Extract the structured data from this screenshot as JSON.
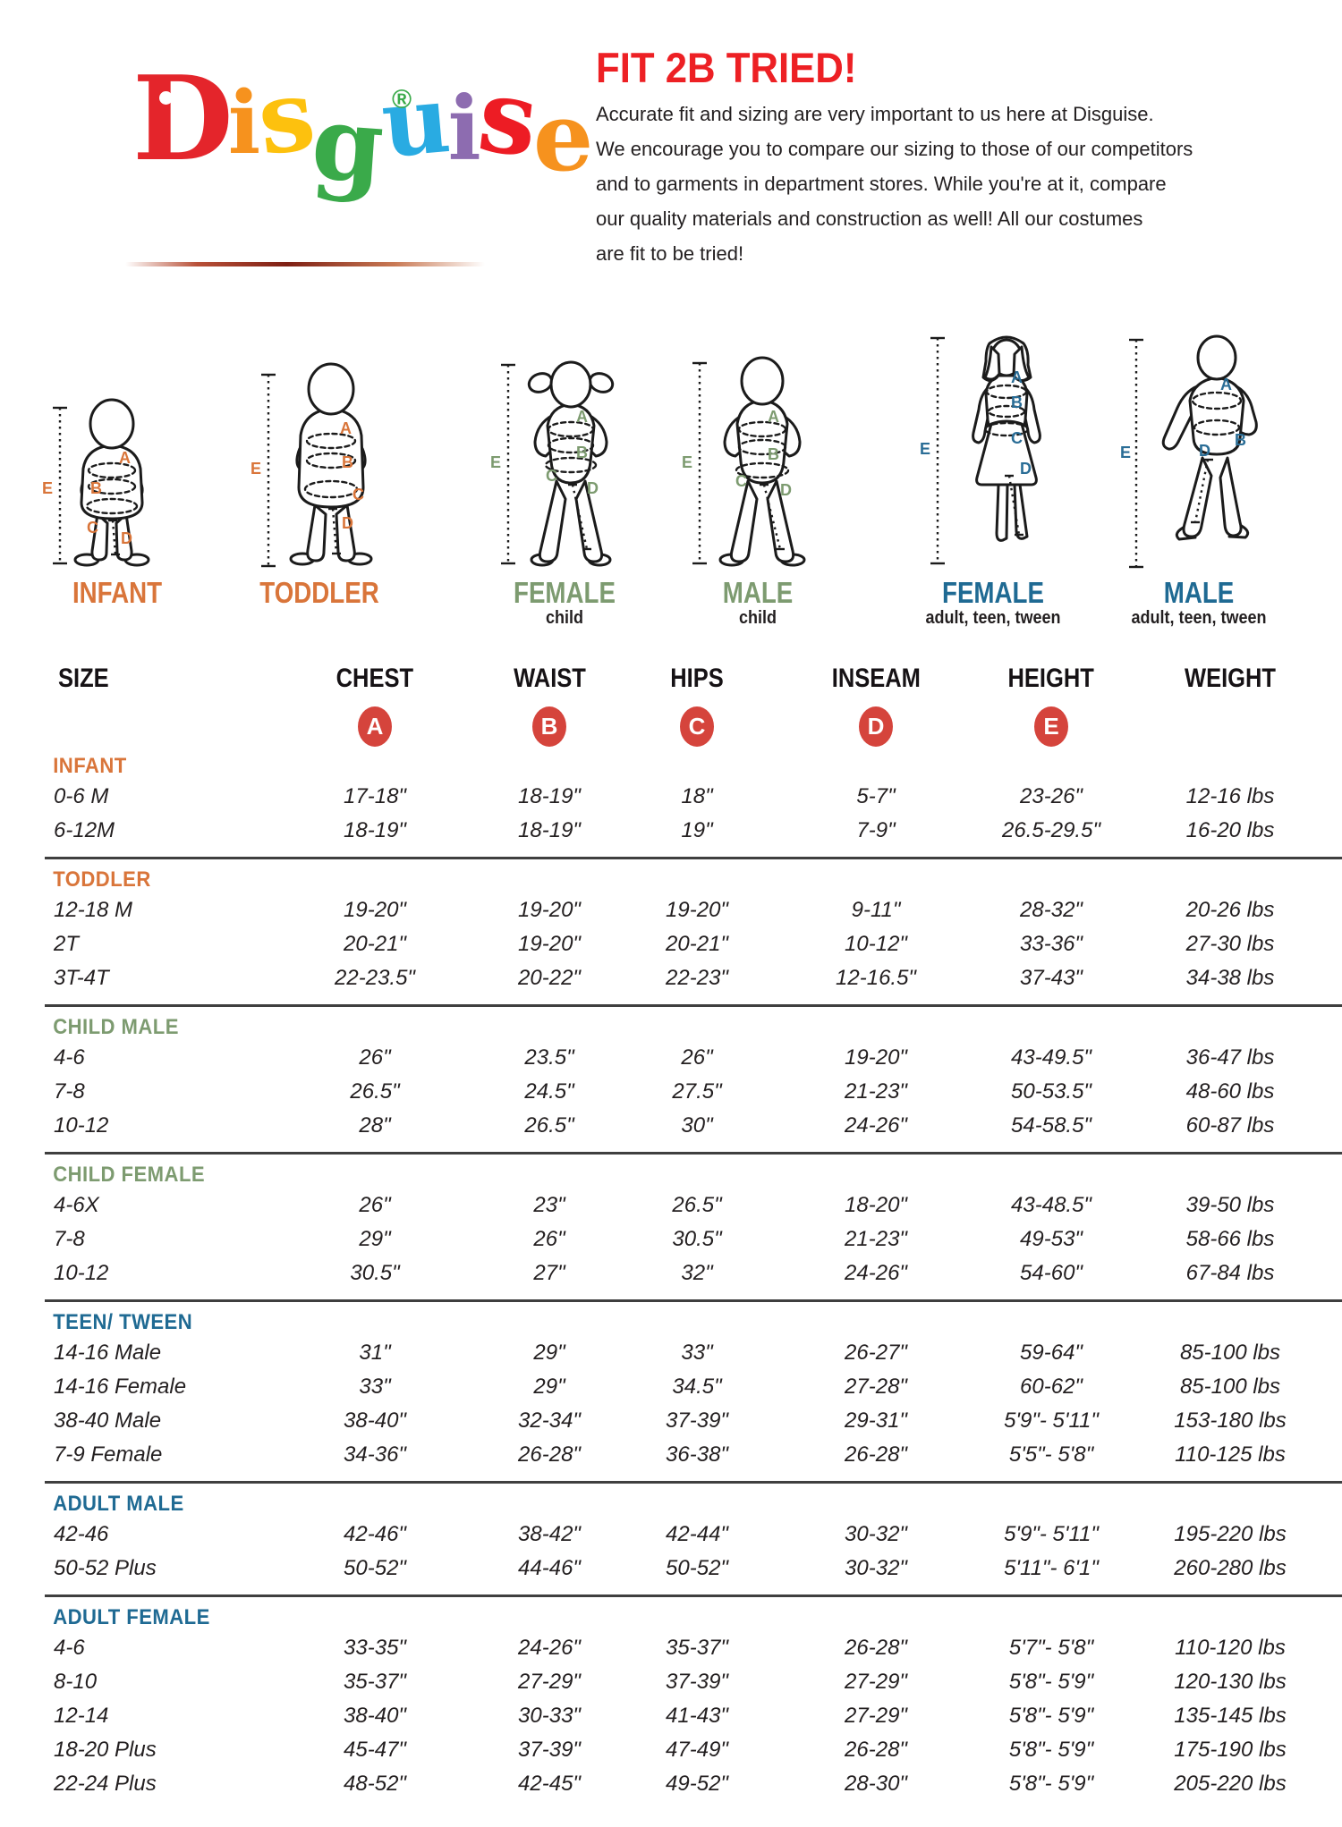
{
  "logo": {
    "letters": [
      {
        "ch": "D",
        "color": "#e4252b"
      },
      {
        "ch": "i",
        "color": "#f6921e"
      },
      {
        "ch": "s",
        "color": "#fdc10e"
      },
      {
        "ch": "g",
        "color": "#3aaa4a"
      },
      {
        "ch": "u",
        "color": "#29abe2"
      },
      {
        "ch": "i",
        "color": "#8d6cb0"
      },
      {
        "ch": "s",
        "color": "#ed1c24"
      },
      {
        "ch": "e",
        "color": "#f6921e"
      }
    ],
    "registered": "®",
    "registered_color": "#3aaa4a"
  },
  "header": {
    "title": "FIT 2B TRIED!",
    "accent_color": "#ed2024",
    "lines": [
      "Accurate fit and sizing are very important to us here at Disguise.",
      "We encourage you to compare our sizing to those of our competitors",
      "and to garments in department stores. While you're at it, compare",
      "our quality materials and construction as well! All our costumes",
      "are fit to be tried!"
    ]
  },
  "figures": [
    {
      "label": "INFANT",
      "sublabel": "",
      "color": "#d9753a",
      "letters": {
        "a": "A",
        "b": "B",
        "c": "C",
        "d": "D",
        "e": "E"
      }
    },
    {
      "label": "TODDLER",
      "sublabel": "",
      "color": "#d9753a",
      "letters": {
        "a": "A",
        "b": "B",
        "c": "C",
        "d": "D",
        "e": "E"
      }
    },
    {
      "label": "FEMALE",
      "sublabel": "child",
      "color": "#7d9b70",
      "letters": {
        "a": "A",
        "b": "B",
        "c": "C",
        "d": "D",
        "e": "E"
      }
    },
    {
      "label": "MALE",
      "sublabel": "child",
      "color": "#7d9b70",
      "letters": {
        "a": "A",
        "b": "B",
        "c": "C",
        "d": "D",
        "e": "E"
      }
    },
    {
      "label": "FEMALE",
      "sublabel": "adult, teen, tween",
      "color": "#1f6a93",
      "letters": {
        "a": "A",
        "b": "B",
        "c": "C",
        "d": "D",
        "e": "E"
      }
    },
    {
      "label": "MALE",
      "sublabel": "adult, teen, tween",
      "color": "#1f6a93",
      "letters": {
        "a": "A",
        "b": "B",
        "d": "D",
        "e": "E"
      }
    }
  ],
  "table": {
    "columns": [
      "SIZE",
      "CHEST",
      "WAIST",
      "HIPS",
      "INSEAM",
      "HEIGHT",
      "WEIGHT"
    ],
    "badges": [
      "A",
      "B",
      "C",
      "D",
      "E"
    ],
    "badge_color": "#d5443c",
    "sections": [
      {
        "name": "INFANT",
        "color": "#d9753a",
        "rows": [
          [
            "0-6 M",
            "17-18\"",
            "18-19\"",
            "18\"",
            "5-7\"",
            "23-26\"",
            "12-16 lbs"
          ],
          [
            "6-12M",
            "18-19\"",
            "18-19\"",
            "19\"",
            "7-9\"",
            "26.5-29.5\"",
            "16-20 lbs"
          ]
        ]
      },
      {
        "name": "TODDLER",
        "color": "#d9753a",
        "rows": [
          [
            "12-18 M",
            "19-20\"",
            "19-20\"",
            "19-20\"",
            "9-11\"",
            "28-32\"",
            "20-26 lbs"
          ],
          [
            "2T",
            "20-21\"",
            "19-20\"",
            "20-21\"",
            "10-12\"",
            "33-36\"",
            "27-30 lbs"
          ],
          [
            "3T-4T",
            "22-23.5\"",
            "20-22\"",
            "22-23\"",
            "12-16.5\"",
            "37-43\"",
            "34-38 lbs"
          ]
        ]
      },
      {
        "name": "CHILD MALE",
        "color": "#7d9b70",
        "rows": [
          [
            "4-6",
            "26\"",
            "23.5\"",
            "26\"",
            "19-20\"",
            "43-49.5\"",
            "36-47 lbs"
          ],
          [
            "7-8",
            "26.5\"",
            "24.5\"",
            "27.5\"",
            "21-23\"",
            "50-53.5\"",
            "48-60 lbs"
          ],
          [
            "10-12",
            "28\"",
            "26.5\"",
            "30\"",
            "24-26\"",
            "54-58.5\"",
            "60-87 lbs"
          ]
        ]
      },
      {
        "name": "CHILD FEMALE",
        "color": "#7d9b70",
        "rows": [
          [
            "4-6X",
            "26\"",
            "23\"",
            "26.5\"",
            "18-20\"",
            "43-48.5\"",
            "39-50 lbs"
          ],
          [
            "7-8",
            "29\"",
            "26\"",
            "30.5\"",
            "21-23\"",
            "49-53\"",
            "58-66 lbs"
          ],
          [
            "10-12",
            "30.5\"",
            "27\"",
            "32\"",
            "24-26\"",
            "54-60\"",
            "67-84 lbs"
          ]
        ]
      },
      {
        "name": "TEEN/ TWEEN",
        "color": "#1f6a93",
        "rows": [
          [
            "14-16 Male",
            "31\"",
            "29\"",
            "33\"",
            "26-27\"",
            "59-64\"",
            "85-100 lbs"
          ],
          [
            "14-16 Female",
            "33\"",
            "29\"",
            "34.5\"",
            "27-28\"",
            "60-62\"",
            "85-100 lbs"
          ],
          [
            "38-40 Male",
            "38-40\"",
            "32-34\"",
            "37-39\"",
            "29-31\"",
            "5'9\"- 5'11\"",
            "153-180 lbs"
          ],
          [
            "7-9 Female",
            "34-36\"",
            "26-28\"",
            "36-38\"",
            "26-28\"",
            "5'5\"- 5'8\"",
            "110-125 lbs"
          ]
        ]
      },
      {
        "name": "ADULT MALE",
        "color": "#1f6a93",
        "rows": [
          [
            "42-46",
            "42-46\"",
            "38-42\"",
            "42-44\"",
            "30-32\"",
            "5'9\"- 5'11\"",
            "195-220 lbs"
          ],
          [
            "50-52 Plus",
            "50-52\"",
            "44-46\"",
            "50-52\"",
            "30-32\"",
            "5'11\"- 6'1\"",
            "260-280 lbs"
          ]
        ]
      },
      {
        "name": "ADULT FEMALE",
        "color": "#1f6a93",
        "rows": [
          [
            "4-6",
            "33-35\"",
            "24-26\"",
            "35-37\"",
            "26-28\"",
            "5'7\"- 5'8\"",
            "110-120 lbs"
          ],
          [
            "8-10",
            "35-37\"",
            "27-29\"",
            "37-39\"",
            "27-29\"",
            "5'8\"- 5'9\"",
            "120-130 lbs"
          ],
          [
            "12-14",
            "38-40\"",
            "30-33\"",
            "41-43\"",
            "27-29\"",
            "5'8\"- 5'9\"",
            "135-145 lbs"
          ],
          [
            "18-20 Plus",
            "45-47\"",
            "37-39\"",
            "47-49\"",
            "26-28\"",
            "5'8\"- 5'9\"",
            "175-190 lbs"
          ],
          [
            "22-24 Plus",
            "48-52\"",
            "42-45\"",
            "49-52\"",
            "28-30\"",
            "5'8\"- 5'9\"",
            "205-220 lbs"
          ]
        ]
      }
    ]
  }
}
